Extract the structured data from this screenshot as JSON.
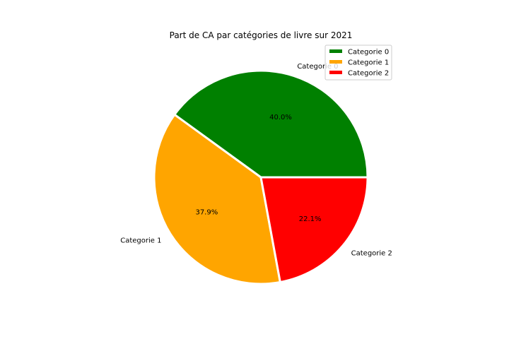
{
  "chart_data": {
    "type": "pie",
    "title": "Part de CA par catégories de livre sur 2021",
    "slices": [
      {
        "label": "Categorie 0",
        "value": 40.0,
        "pct_label": "40.0%",
        "color": "#008000"
      },
      {
        "label": "Categorie 1",
        "value": 37.9,
        "pct_label": "37.9%",
        "color": "#FFA500"
      },
      {
        "label": "Categorie 2",
        "value": 22.1,
        "pct_label": "22.1%",
        "color": "#FF0000"
      }
    ],
    "start_angle_deg": 0,
    "direction": "counterclockwise",
    "legend": {
      "placement": "upper-right",
      "entries": [
        "Categorie 0",
        "Categorie 1",
        "Categorie 2"
      ]
    },
    "edge_color": "#ffffff"
  }
}
